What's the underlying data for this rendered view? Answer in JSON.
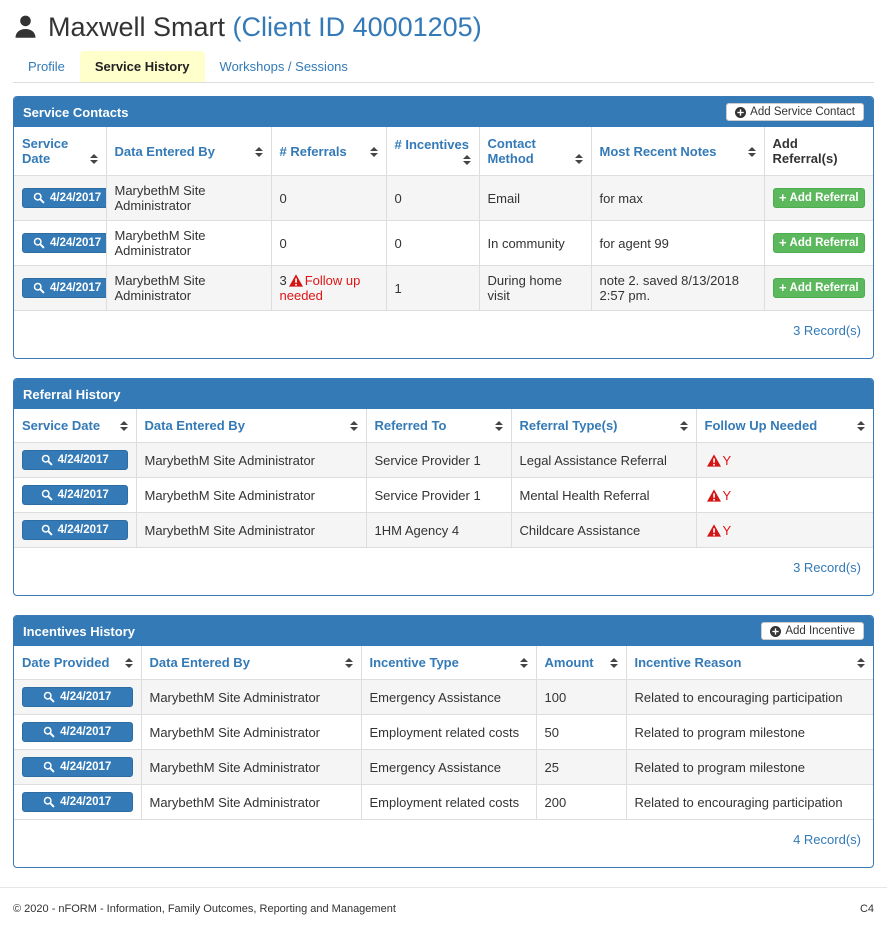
{
  "colors": {
    "accent": "#337ab7",
    "success": "#5cb85c",
    "danger": "#e01414",
    "active_tab_bg": "#ffffcc"
  },
  "header": {
    "title": "Maxwell Smart",
    "client_id": "(Client ID 40001205)"
  },
  "tabs": [
    {
      "label": "Profile",
      "active": false
    },
    {
      "label": "Service History",
      "active": true
    },
    {
      "label": "Workshops / Sessions",
      "active": false
    }
  ],
  "panels": [
    {
      "title": "Service Contacts",
      "add_button": "Add Service Contact",
      "record_count": "3 Record(s)",
      "columns": [
        {
          "label": "Service Date",
          "type": "date",
          "sortable": true
        },
        {
          "label": "Data Entered By",
          "type": "text",
          "sortable": true
        },
        {
          "label": "# Referrals",
          "type": "warn-count",
          "sortable": true
        },
        {
          "label": "# Incentives",
          "type": "text",
          "sortable": true
        },
        {
          "label": "Contact Method",
          "type": "text",
          "sortable": true
        },
        {
          "label": "Most Recent Notes",
          "type": "text",
          "sortable": true
        },
        {
          "label": "Add Referral(s)",
          "type": "green-btn",
          "sortable": false,
          "dark": true
        }
      ],
      "green_button_label": "Add Referral",
      "rows": [
        [
          "4/24/2017",
          "MarybethM Site Administrator",
          {
            "n": "0"
          },
          "0",
          "Email",
          "for max",
          "Add Referral"
        ],
        [
          "4/24/2017",
          "MarybethM Site Administrator",
          {
            "n": "0"
          },
          "0",
          "In community",
          "for agent 99",
          "Add Referral"
        ],
        [
          "4/24/2017",
          "MarybethM Site Administrator",
          {
            "n": "3",
            "warn": "Follow up needed"
          },
          "1",
          "During home visit",
          "note 2. saved 8/13/2018 2:57 pm.",
          "Add Referral"
        ]
      ]
    },
    {
      "title": "Referral History",
      "add_button": null,
      "record_count": "3 Record(s)",
      "columns": [
        {
          "label": "Service Date",
          "type": "date",
          "sortable": true
        },
        {
          "label": "Data Entered By",
          "type": "text",
          "sortable": true
        },
        {
          "label": "Referred To",
          "type": "text",
          "sortable": true
        },
        {
          "label": "Referral Type(s)",
          "type": "text",
          "sortable": true
        },
        {
          "label": "Follow Up Needed",
          "type": "warn-y",
          "sortable": true
        }
      ],
      "rows": [
        [
          "4/24/2017",
          "MarybethM Site Administrator",
          "Service Provider 1",
          "Legal Assistance Referral",
          "Y"
        ],
        [
          "4/24/2017",
          "MarybethM Site Administrator",
          "Service Provider 1",
          "Mental Health Referral",
          "Y"
        ],
        [
          "4/24/2017",
          "MarybethM Site Administrator",
          "1HM Agency 4",
          "Childcare Assistance",
          "Y"
        ]
      ]
    },
    {
      "title": "Incentives History",
      "add_button": "Add Incentive",
      "record_count": "4 Record(s)",
      "columns": [
        {
          "label": "Date Provided",
          "type": "date",
          "sortable": true
        },
        {
          "label": "Data Entered By",
          "type": "text",
          "sortable": true
        },
        {
          "label": "Incentive Type",
          "type": "text",
          "sortable": true
        },
        {
          "label": "Amount",
          "type": "text",
          "sortable": true
        },
        {
          "label": "Incentive Reason",
          "type": "text",
          "sortable": true
        }
      ],
      "rows": [
        [
          "4/24/2017",
          "MarybethM Site Administrator",
          "Emergency Assistance",
          "100",
          "Related to encouraging participation"
        ],
        [
          "4/24/2017",
          "MarybethM Site Administrator",
          "Employment related costs",
          "50",
          "Related to program milestone"
        ],
        [
          "4/24/2017",
          "MarybethM Site Administrator",
          "Emergency Assistance",
          "25",
          "Related to program milestone"
        ],
        [
          "4/24/2017",
          "MarybethM Site Administrator",
          "Employment related costs",
          "200",
          "Related to encouraging participation"
        ]
      ]
    }
  ],
  "footer": {
    "copyright": "© 2020 - nFORM - Information, Family Outcomes, Reporting and Management",
    "version": "C4"
  }
}
